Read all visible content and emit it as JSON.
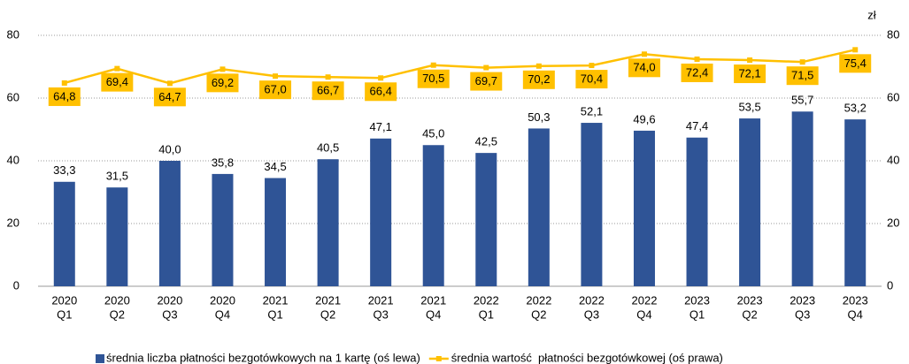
{
  "chart_data": {
    "type": "combo",
    "categories": [
      [
        "2020",
        "Q1"
      ],
      [
        "2020",
        "Q2"
      ],
      [
        "2020",
        "Q3"
      ],
      [
        "2020",
        "Q4"
      ],
      [
        "2021",
        "Q1"
      ],
      [
        "2021",
        "Q2"
      ],
      [
        "2021",
        "Q3"
      ],
      [
        "2021",
        "Q4"
      ],
      [
        "2022",
        "Q1"
      ],
      [
        "2022",
        "Q2"
      ],
      [
        "2022",
        "Q3"
      ],
      [
        "2022",
        "Q4"
      ],
      [
        "2023",
        "Q1"
      ],
      [
        "2023",
        "Q2"
      ],
      [
        "2023",
        "Q3"
      ],
      [
        "2023",
        "Q4"
      ]
    ],
    "series": [
      {
        "name": "średnia liczba płatności bezgotówkowych na 1 kartę (oś lewa)",
        "type": "bar",
        "color": "#2f5496",
        "values": [
          33.3,
          31.5,
          40.0,
          35.8,
          34.5,
          40.5,
          47.1,
          45.0,
          42.5,
          50.3,
          52.1,
          49.6,
          47.4,
          53.5,
          55.7,
          53.2
        ],
        "value_labels": [
          "33,3",
          "31,5",
          "40,0",
          "35,8",
          "34,5",
          "40,5",
          "47,1",
          "45,0",
          "42,5",
          "50,3",
          "52,1",
          "49,6",
          "47,4",
          "53,5",
          "55,7",
          "53,2"
        ]
      },
      {
        "name": "średnia wartość  płatności bezgotówkowej (oś prawa)",
        "type": "line",
        "axis": "y2",
        "color": "#ffc000",
        "values": [
          64.8,
          69.4,
          64.7,
          69.2,
          67.0,
          66.7,
          66.4,
          70.5,
          69.7,
          70.2,
          70.4,
          74.0,
          72.4,
          72.1,
          71.5,
          75.4
        ],
        "value_labels": [
          "64,8",
          "69,4",
          "64,7",
          "69,2",
          "67,0",
          "66,7",
          "66,4",
          "70,5",
          "69,7",
          "70,2",
          "70,4",
          "74,0",
          "72,4",
          "72,1",
          "71,5",
          "75,4"
        ]
      }
    ],
    "ylim": [
      0,
      80
    ],
    "yticks": [
      0,
      20,
      40,
      60,
      80
    ],
    "y2lim": [
      0,
      80
    ],
    "y2ticks": [
      0,
      20,
      40,
      60,
      80
    ],
    "y2_unit": "zł",
    "grid": true
  }
}
